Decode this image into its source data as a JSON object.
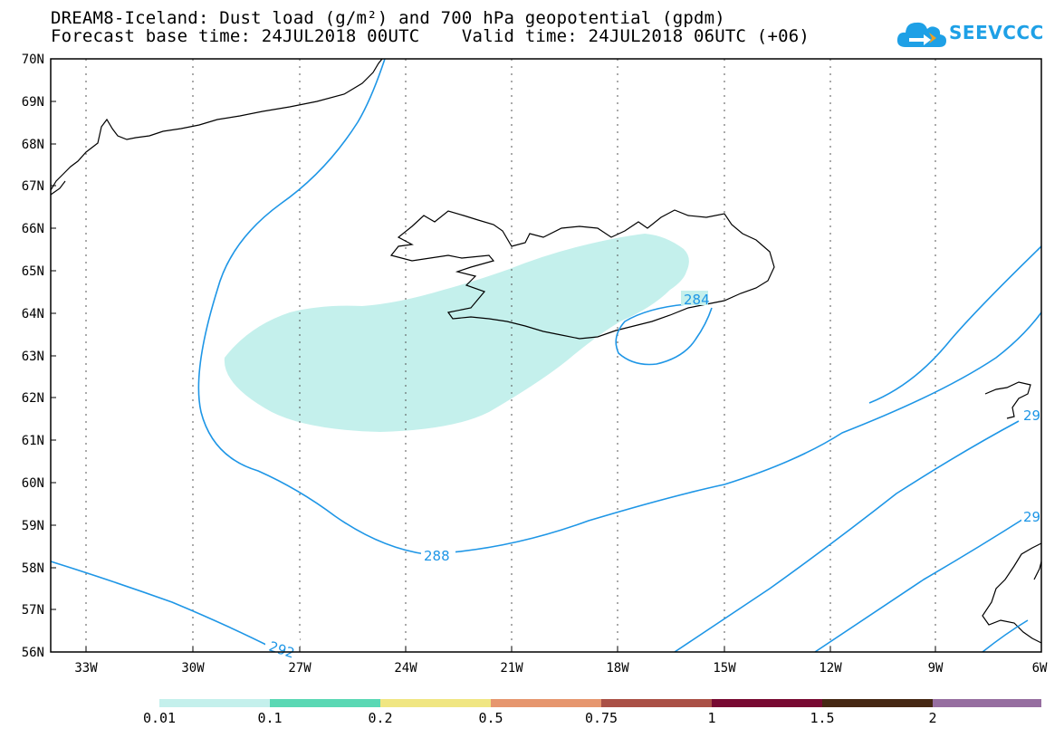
{
  "title": {
    "line1": "DREAM8-Iceland: Dust load (g/m²) and 700 hPa geopotential (gpdm)",
    "line2": "Forecast base time: 24JUL2018 00UTC    Valid time: 24JUL2018 06UTC (+06)"
  },
  "logo": {
    "text": "SEEVCCC",
    "icon": "cloud-arrow-icon",
    "color": "#1ea0e6"
  },
  "map": {
    "lat_labels": [
      "70N",
      "69N",
      "68N",
      "67N",
      "66N",
      "65N",
      "64N",
      "63N",
      "62N",
      "61N",
      "60N",
      "59N",
      "58N",
      "57N",
      "56N"
    ],
    "lon_labels": [
      "33W",
      "30W",
      "27W",
      "24W",
      "21W",
      "18W",
      "15W",
      "12W",
      "9W",
      "6W"
    ],
    "contour_labels": [
      "288",
      "284",
      "292",
      "29",
      "29"
    ],
    "dust_fill_color": "#c4f0ec",
    "contour_color": "#1e96e6"
  },
  "colorbar": {
    "labels": [
      "0.01",
      "0.1",
      "0.2",
      "0.5",
      "0.75",
      "1",
      "1.5",
      "2"
    ],
    "colors": [
      "#c4f0ec",
      "#5ad8b4",
      "#f0e682",
      "#e6966e",
      "#aa5046",
      "#780a32",
      "#462814",
      "#966ea0"
    ]
  }
}
